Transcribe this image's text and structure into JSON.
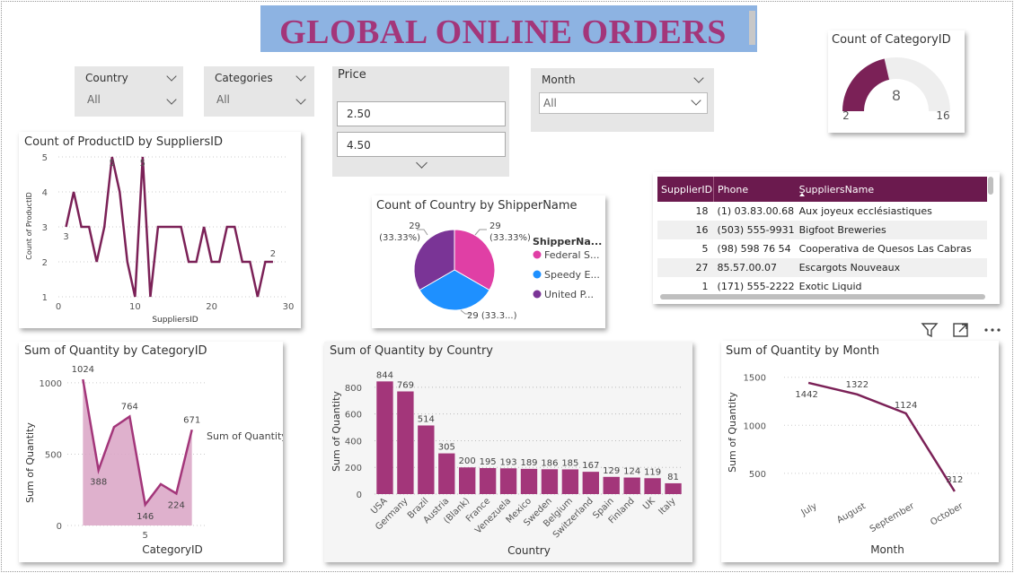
{
  "page_title": "GLOBAL ONLINE ORDERS",
  "colors": {
    "accent": "#7b2157",
    "title_bg": "#8db3e2",
    "title_fg": "#a3367a",
    "bar": "#a3367a",
    "area_fill": "#d9a3c4"
  },
  "slicers": {
    "country": {
      "label": "Country",
      "value": "All"
    },
    "categories": {
      "label": "Categories",
      "value": "All"
    },
    "price": {
      "label": "Price",
      "min": "2.50",
      "max": "4.50"
    },
    "month": {
      "label": "Month",
      "value": "All"
    }
  },
  "gauge": {
    "title": "Count of CategoryID",
    "value": 8,
    "value_label": "8",
    "min": 2,
    "min_label": "2",
    "max": 16,
    "max_label": "16"
  },
  "toolbar": {
    "icons": [
      "filter-icon",
      "focus-mode-icon",
      "more-options-icon"
    ]
  },
  "supplier_table": {
    "columns": [
      "SupplierID",
      "Phone",
      "SuppliersName"
    ],
    "rows": [
      [
        "18",
        "(1) 03.83.00.68",
        "Aux joyeux ecclésiastiques"
      ],
      [
        "16",
        "(503) 555-9931",
        "Bigfoot Breweries"
      ],
      [
        "5",
        "(98) 598 76 54",
        "Cooperativa de Quesos Las Cabras"
      ],
      [
        "27",
        "85.57.00.07",
        "Escargots Nouveaux"
      ],
      [
        "1",
        "(171) 555-2222",
        "Exotic Liquid"
      ]
    ]
  },
  "chart_data": [
    {
      "id": "products",
      "type": "line",
      "title": "Count of ProductID by SuppliersID",
      "xlabel": "SuppliersID",
      "ylabel": "Count of ProductID",
      "x": [
        1,
        2,
        3,
        4,
        5,
        6,
        7,
        8,
        9,
        10,
        11,
        12,
        13,
        14,
        15,
        16,
        17,
        18,
        19,
        20,
        21,
        22,
        23,
        24,
        25,
        26,
        27,
        28,
        29,
        30
      ],
      "values": [
        3,
        4,
        3,
        3,
        2,
        3,
        5,
        4,
        2,
        1,
        5,
        1,
        3,
        3,
        3,
        3,
        2,
        2,
        3,
        2,
        2,
        3,
        3,
        2,
        2,
        1,
        2,
        2,
        null,
        null
      ],
      "x_ticks": [
        "0",
        "10",
        "20",
        "30"
      ],
      "y_ticks": [
        "1",
        "2",
        "3",
        "4",
        "5"
      ],
      "xlim": [
        0,
        30
      ],
      "ylim": [
        1,
        5
      ],
      "data_labels": [
        {
          "x": 1,
          "text": "3"
        },
        {
          "x": 7,
          "text": "5"
        },
        {
          "x": 11,
          "text": "5"
        },
        {
          "x": 28,
          "text": "2"
        }
      ]
    },
    {
      "id": "shipper",
      "type": "pie",
      "title": "Count of Country by ShipperName",
      "legend_title": "ShipperNa...",
      "slices": [
        {
          "name": "Federal S...",
          "value": 29,
          "label": "29",
          "pct": "(33.33%)",
          "color": "#e03fa5"
        },
        {
          "name": "Speedy E...",
          "value": 29,
          "label": "29 (33.3...)",
          "pct": "",
          "color": "#1e90ff"
        },
        {
          "name": "United P...",
          "value": 29,
          "label": "29",
          "pct": "(33.33%)",
          "color": "#7a3496"
        }
      ]
    },
    {
      "id": "category",
      "type": "area",
      "title": "Sum of Quantity by CategoryID",
      "xlabel": "CategoryID",
      "ylabel": "Sum of Quantity",
      "series_name": "Sum of Quantity",
      "x": [
        1,
        2,
        3,
        4,
        5,
        6,
        7,
        8
      ],
      "values": [
        1024,
        388,
        690,
        764,
        146,
        290,
        224,
        671
      ],
      "labels": [
        "1024",
        "388",
        "",
        "764",
        "146",
        "",
        "224",
        "671"
      ],
      "x_ticks": [
        "5"
      ],
      "y_ticks": [
        "0",
        "500",
        "1000"
      ],
      "xlim": [
        0,
        9
      ],
      "ylim": [
        0,
        1100
      ]
    },
    {
      "id": "country",
      "type": "bar",
      "title": "Sum of Quantity by Country",
      "xlabel": "Country",
      "ylabel": "Sum of Quantity",
      "categories": [
        "USA",
        "Germany",
        "Brazil",
        "Austria",
        "(Blank)",
        "France",
        "Venezuela",
        "Mexico",
        "Sweden",
        "Belgium",
        "Switzerland",
        "Spain",
        "Finland",
        "UK",
        "Italy"
      ],
      "values": [
        844,
        769,
        514,
        305,
        200,
        195,
        193,
        189,
        186,
        185,
        167,
        129,
        124,
        119,
        81
      ],
      "y_ticks": [
        "0",
        "200",
        "400",
        "600",
        "800"
      ],
      "ylim": [
        0,
        900
      ]
    },
    {
      "id": "month",
      "type": "line",
      "title": "Sum of Quantity by Month",
      "xlabel": "Month",
      "ylabel": "Sum of Quantity",
      "categories": [
        "July",
        "August",
        "September",
        "October"
      ],
      "values": [
        1442,
        1322,
        1124,
        312
      ],
      "y_ticks": [
        "500",
        "1000",
        "1500"
      ],
      "ylim": [
        200,
        1600
      ]
    }
  ]
}
